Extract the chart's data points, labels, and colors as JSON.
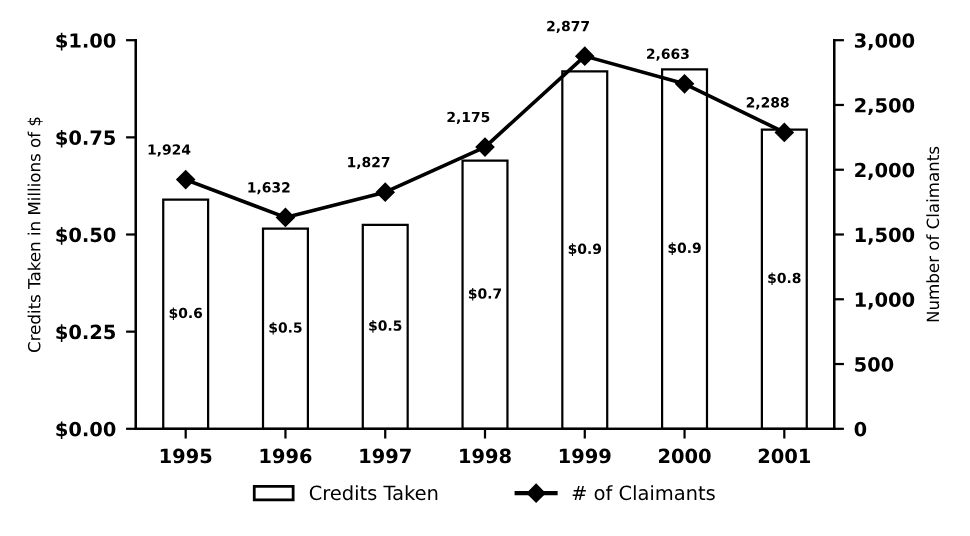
{
  "chart_data": {
    "type": "bar",
    "categories": [
      "1995",
      "1996",
      "1997",
      "1998",
      "1999",
      "2000",
      "2001"
    ],
    "ylabel": "Credits Taken in Millions of $",
    "y2label": "Number of Claimants",
    "ylim": [
      0,
      1
    ],
    "yticks": [
      {
        "value": 0,
        "label": "$0.00"
      },
      {
        "value": 0.25,
        "label": "$0.25"
      },
      {
        "value": 0.5,
        "label": "$0.50"
      },
      {
        "value": 0.75,
        "label": "$0.75"
      },
      {
        "value": 1,
        "label": "$1.00"
      }
    ],
    "y2lim": [
      0,
      3000
    ],
    "y2ticks": [
      {
        "value": 0,
        "label": "0"
      },
      {
        "value": 500,
        "label": "500"
      },
      {
        "value": 1000,
        "label": "1,000"
      },
      {
        "value": 1500,
        "label": "1,500"
      },
      {
        "value": 2000,
        "label": "2,000"
      },
      {
        "value": 2500,
        "label": "2,500"
      },
      {
        "value": 3000,
        "label": "3,000"
      }
    ],
    "series": [
      {
        "name": "Credits Taken",
        "color": "#ffffff",
        "values": [
          0.59,
          0.515,
          0.525,
          0.69,
          0.92,
          0.925,
          0.77
        ],
        "value_labels": [
          "$0.6",
          "$0.5",
          "$0.5",
          "$0.7",
          "$0.9",
          "$0.9",
          "$0.8"
        ]
      },
      {
        "name": "# of Claimants",
        "type": "line",
        "axis": "y2",
        "color": "#000000",
        "marker": "diamond",
        "values": [
          1924,
          1632,
          1827,
          2175,
          2877,
          2663,
          2288
        ],
        "value_labels": [
          "1,924",
          "1,632",
          "1,827",
          "2,175",
          "2,877",
          "2,663",
          "2,288"
        ]
      }
    ],
    "legend": "bottom",
    "grid": false
  }
}
